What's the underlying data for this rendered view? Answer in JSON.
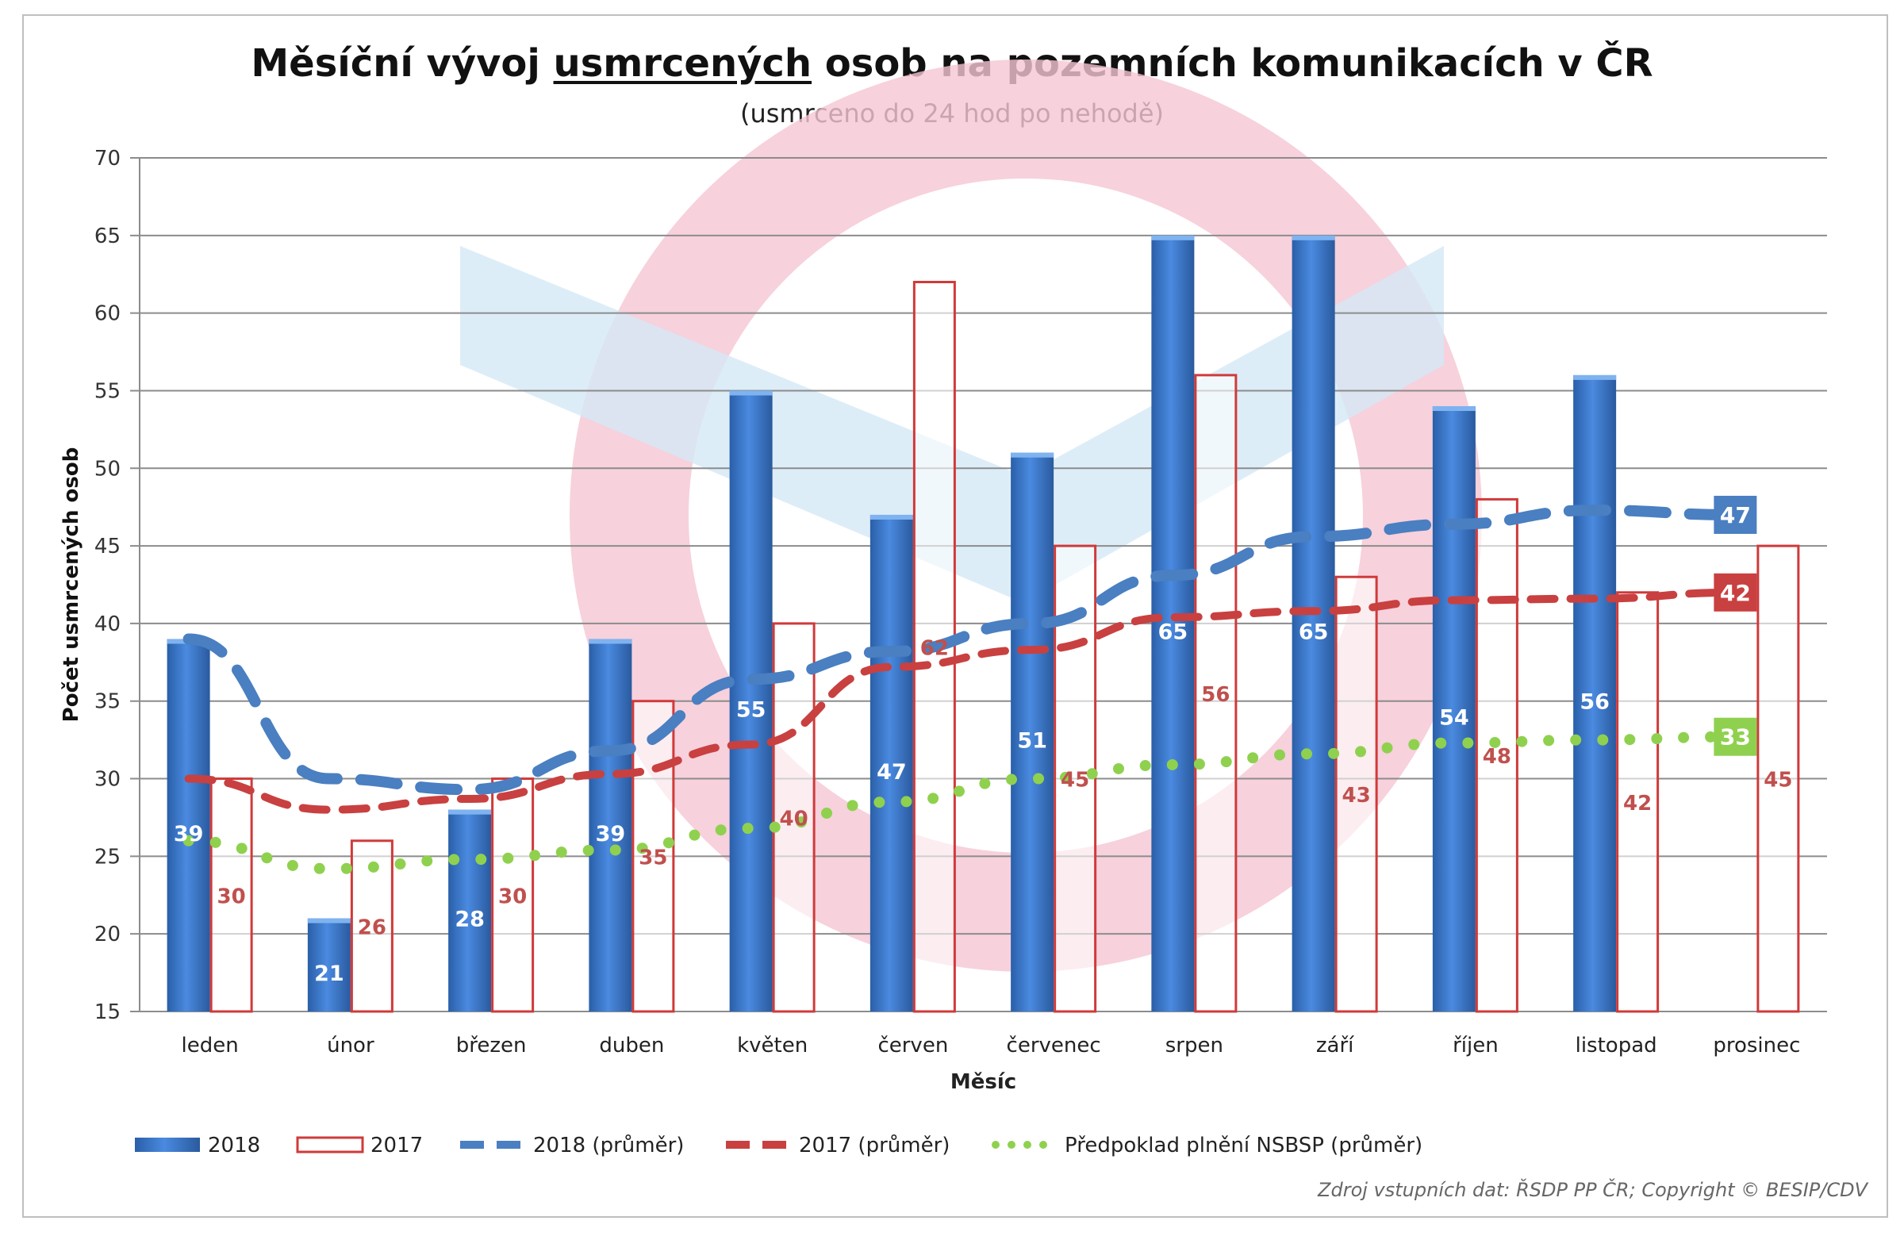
{
  "chart_data": {
    "type": "bar",
    "title_parts": [
      "Měsíční vývoj ",
      "usmrcených",
      " osob na pozemních komunikacích v ČR"
    ],
    "subtitle": "(usmrceno do 24 hod po nehodě)",
    "xlabel": "Měsíc",
    "ylabel": "Počet usmrcených osob",
    "ylim": [
      15,
      70
    ],
    "yticks": [
      15,
      20,
      25,
      30,
      35,
      40,
      45,
      50,
      55,
      60,
      65,
      70
    ],
    "grid": true,
    "legend_position": "bottom",
    "categories": [
      "leden",
      "únor",
      "březen",
      "duben",
      "květen",
      "červen",
      "červenec",
      "srpen",
      "září",
      "říjen",
      "listopad",
      "prosinec"
    ],
    "series": [
      {
        "name": "2018",
        "type": "bar",
        "color": "#3b78c6",
        "values": [
          39,
          21,
          28,
          39,
          55,
          47,
          51,
          65,
          65,
          54,
          56,
          null
        ]
      },
      {
        "name": "2017",
        "type": "bar-outline",
        "color": "#d03a3a",
        "values": [
          30,
          26,
          30,
          35,
          40,
          62,
          45,
          56,
          43,
          48,
          42,
          45
        ]
      },
      {
        "name": "2018 (průměr)",
        "type": "line-dashed",
        "color": "#4a7fc1",
        "values": [
          39,
          30,
          29.3,
          31.8,
          36.4,
          38.2,
          40,
          43.1,
          45.6,
          46.4,
          47.3,
          47
        ],
        "end_label": "47"
      },
      {
        "name": "2017 (průměr)",
        "type": "line-dashed",
        "color": "#c94040",
        "values": [
          30,
          28,
          28.7,
          30.3,
          32.2,
          37.2,
          38.3,
          40.4,
          40.8,
          41.5,
          41.6,
          42
        ],
        "end_label": "42"
      },
      {
        "name": "Předpoklad plnění NSBSP (průměr)",
        "type": "line-dotted",
        "color": "#8fd14f",
        "values": [
          26,
          24.2,
          24.8,
          25.4,
          26.8,
          28.5,
          30,
          30.9,
          31.6,
          32.3,
          32.5,
          32.7
        ],
        "end_label": "33"
      }
    ]
  },
  "source": "Zdroj vstupních dat: ŘSDP PP ČR; Copyright © BESIP/CDV",
  "watermark": "BESIP"
}
